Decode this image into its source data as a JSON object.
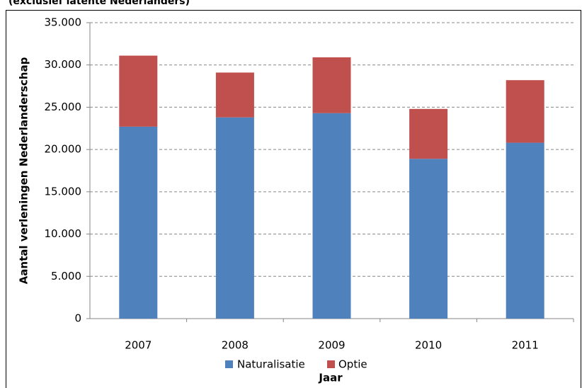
{
  "chart_data": {
    "type": "stacked_bar",
    "title": "(exclusief latente Nederlanders)",
    "y_label": "Aantal verleningen Nederlanderschap",
    "x_label": "Jaar",
    "categories": [
      "2007",
      "2008",
      "2009",
      "2010",
      "2011"
    ],
    "series": [
      {
        "name": "Naturalisatie",
        "color": "#4f81bd",
        "values": [
          22700,
          23800,
          24300,
          18900,
          20800
        ]
      },
      {
        "name": "Optie",
        "color": "#c0504d",
        "values": [
          8400,
          5300,
          6600,
          5900,
          7400
        ]
      }
    ],
    "ylim": [
      0,
      35000
    ],
    "yticks": [
      0,
      {
        "value": 5000,
        "label": "5.000"
      },
      {
        "value": 10000,
        "label": "10.000"
      },
      {
        "value": 15000,
        "label": "15.000"
      },
      {
        "value": 20000,
        "label": "20.000"
      },
      {
        "value": 25000,
        "label": "25.000"
      },
      {
        "value": 30000,
        "label": "30.000"
      },
      {
        "value": 35000,
        "label": "35.000"
      }
    ],
    "grid": true,
    "legend": "bottom"
  }
}
